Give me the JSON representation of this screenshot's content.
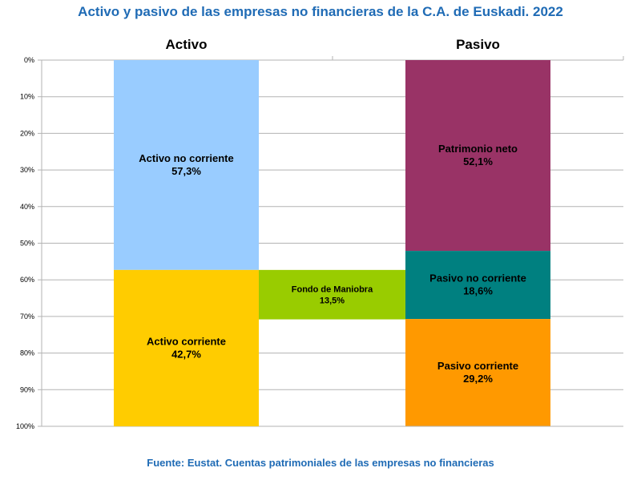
{
  "chart_data": {
    "type": "bar",
    "stacked": true,
    "title": "Activo y pasivo de las empresas no financieras de la C.A. de Euskadi. 2022",
    "source": "Fuente: Eustat. Cuentas patrimoniales de las empresas no financieras",
    "ylim": [
      0,
      100
    ],
    "y_inverted": true,
    "yticks": [
      "0%",
      "10%",
      "20%",
      "30%",
      "40%",
      "50%",
      "60%",
      "70%",
      "80%",
      "90%",
      "100%"
    ],
    "colors": {
      "title": "#1f6bb5",
      "source": "#1f6bb5",
      "activo_no_corriente": "#99ccff",
      "activo_corriente": "#ffcc00",
      "fondo_maniobra": "#99cc00",
      "patrimonio_neto": "#993366",
      "pasivo_no_corriente": "#008080",
      "pasivo_corriente": "#ff9900",
      "grid": "#b3b3b3"
    },
    "columns": [
      {
        "name": "Activo",
        "segments": [
          {
            "key": "activo_no_corriente",
            "name": "Activo no corriente",
            "value": 57.3,
            "label": "57,3%"
          },
          {
            "key": "activo_corriente",
            "name": "Activo corriente",
            "value": 42.7,
            "label": "42,7%"
          }
        ]
      },
      {
        "name": "",
        "segments": [
          {
            "key": "fondo_maniobra",
            "name": "Fondo de Maniobra",
            "start": 57.3,
            "value": 13.5,
            "label": "13,5%"
          }
        ]
      },
      {
        "name": "Pasivo",
        "segments": [
          {
            "key": "patrimonio_neto",
            "name": "Patrimonio neto",
            "value": 52.1,
            "label": "52,1%"
          },
          {
            "key": "pasivo_no_corriente",
            "name": "Pasivo no corriente",
            "value": 18.6,
            "label": "18,6%"
          },
          {
            "key": "pasivo_corriente",
            "name": "Pasivo corriente",
            "value": 29.2,
            "label": "29,2%"
          }
        ]
      }
    ]
  }
}
